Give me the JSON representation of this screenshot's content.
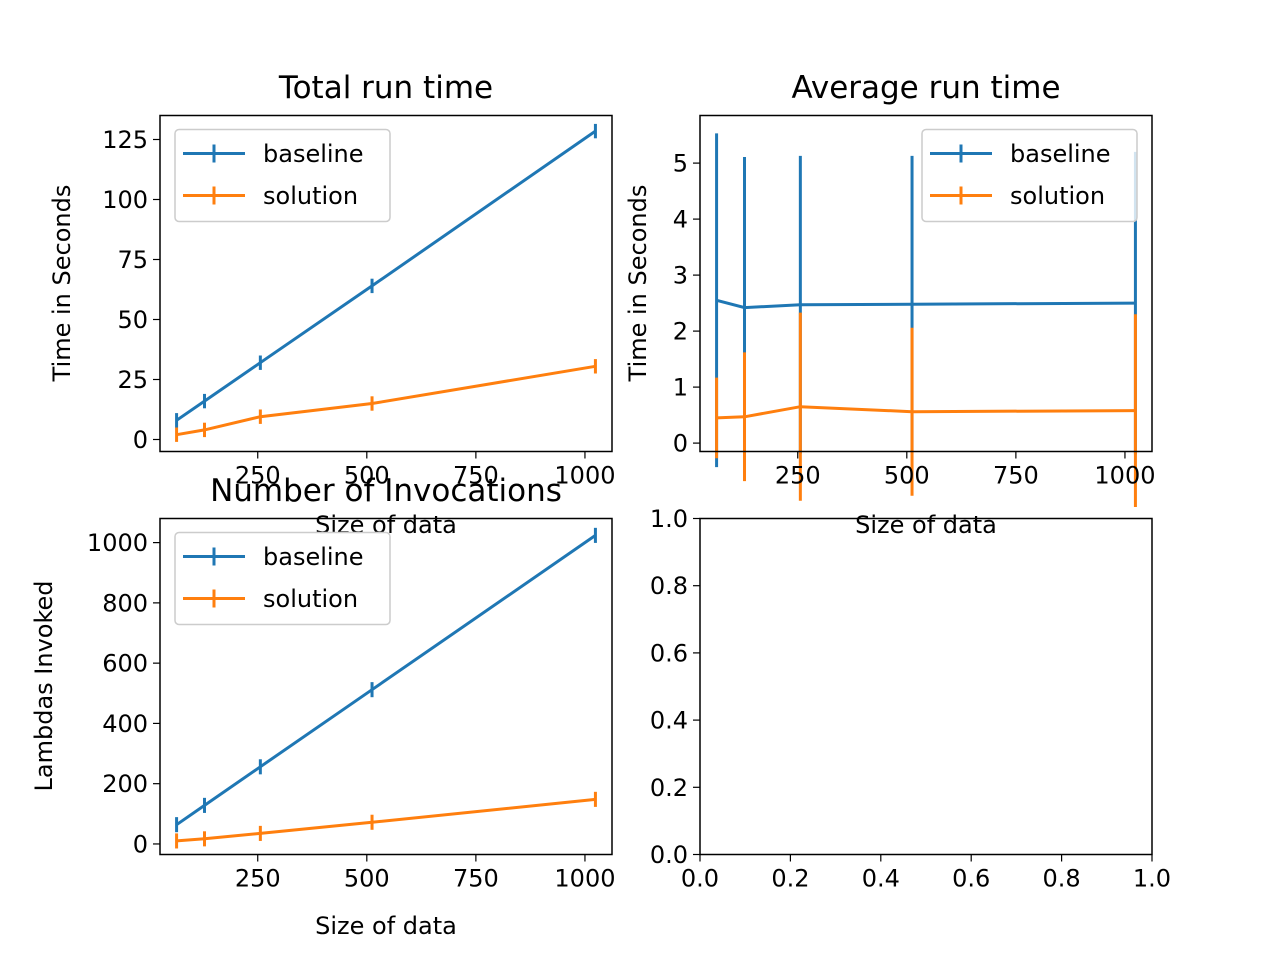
{
  "colors": {
    "baseline": "#1f77b4",
    "solution": "#ff7f0e"
  },
  "chart_data": [
    {
      "type": "line",
      "title": "Total run time",
      "xlabel": "Size of data",
      "ylabel": "Time in Seconds",
      "x": [
        64,
        128,
        256,
        512,
        1024
      ],
      "xlim": [
        26,
        1062
      ],
      "ylim": [
        -5,
        135
      ],
      "xticks": [
        250,
        500,
        750,
        1000
      ],
      "yticks": [
        0,
        25,
        50,
        75,
        100,
        125
      ],
      "legend": "upper left",
      "series": [
        {
          "name": "baseline",
          "values": [
            8,
            16,
            32,
            64,
            128.5
          ],
          "err": [
            3,
            3,
            3,
            3,
            3
          ]
        },
        {
          "name": "solution",
          "values": [
            2,
            4,
            9.5,
            15,
            30.5
          ],
          "err": [
            3,
            3,
            3,
            3,
            3
          ]
        }
      ]
    },
    {
      "type": "line",
      "title": "Average run time",
      "xlabel": "Size of data",
      "ylabel": "Time in Seconds",
      "x": [
        64,
        128,
        256,
        512,
        1024
      ],
      "xlim": [
        26,
        1062
      ],
      "ylim": [
        -0.15,
        5.85
      ],
      "xticks": [
        250,
        500,
        750,
        1000
      ],
      "yticks": [
        0,
        1,
        2,
        3,
        4,
        5
      ],
      "legend": "upper right",
      "series": [
        {
          "name": "baseline",
          "values": [
            2.55,
            2.42,
            2.47,
            2.48,
            2.5
          ],
          "err": [
            2.98,
            2.69,
            2.66,
            2.65,
            2.7
          ]
        },
        {
          "name": "solution",
          "values": [
            0.45,
            0.47,
            0.65,
            0.56,
            0.58
          ],
          "err": [
            0.72,
            1.15,
            1.68,
            1.5,
            1.72
          ]
        }
      ]
    },
    {
      "type": "line",
      "title": "Number of Invocations",
      "xlabel": "Size of data",
      "ylabel": "Lambdas Invoked",
      "x": [
        64,
        128,
        256,
        512,
        1024
      ],
      "xlim": [
        26,
        1062
      ],
      "ylim": [
        -35,
        1080
      ],
      "xticks": [
        250,
        500,
        750,
        1000
      ],
      "yticks": [
        0,
        200,
        400,
        600,
        800,
        1000
      ],
      "legend": "upper left",
      "series": [
        {
          "name": "baseline",
          "values": [
            64,
            128,
            256,
            512,
            1024
          ],
          "err": [
            25,
            25,
            25,
            25,
            25
          ]
        },
        {
          "name": "solution",
          "values": [
            10,
            17,
            35,
            72,
            148
          ],
          "err": [
            25,
            25,
            25,
            25,
            25
          ]
        }
      ]
    },
    {
      "type": "line",
      "title": "",
      "xlabel": "",
      "ylabel": "",
      "x": [],
      "xlim": [
        0,
        1
      ],
      "ylim": [
        0,
        1
      ],
      "xticks": [
        "0.0",
        "0.2",
        "0.4",
        "0.6",
        "0.8",
        "1.0"
      ],
      "yticks": [
        "0.0",
        "0.2",
        "0.4",
        "0.6",
        "0.8",
        "1.0"
      ],
      "legend": "none",
      "series": []
    }
  ]
}
